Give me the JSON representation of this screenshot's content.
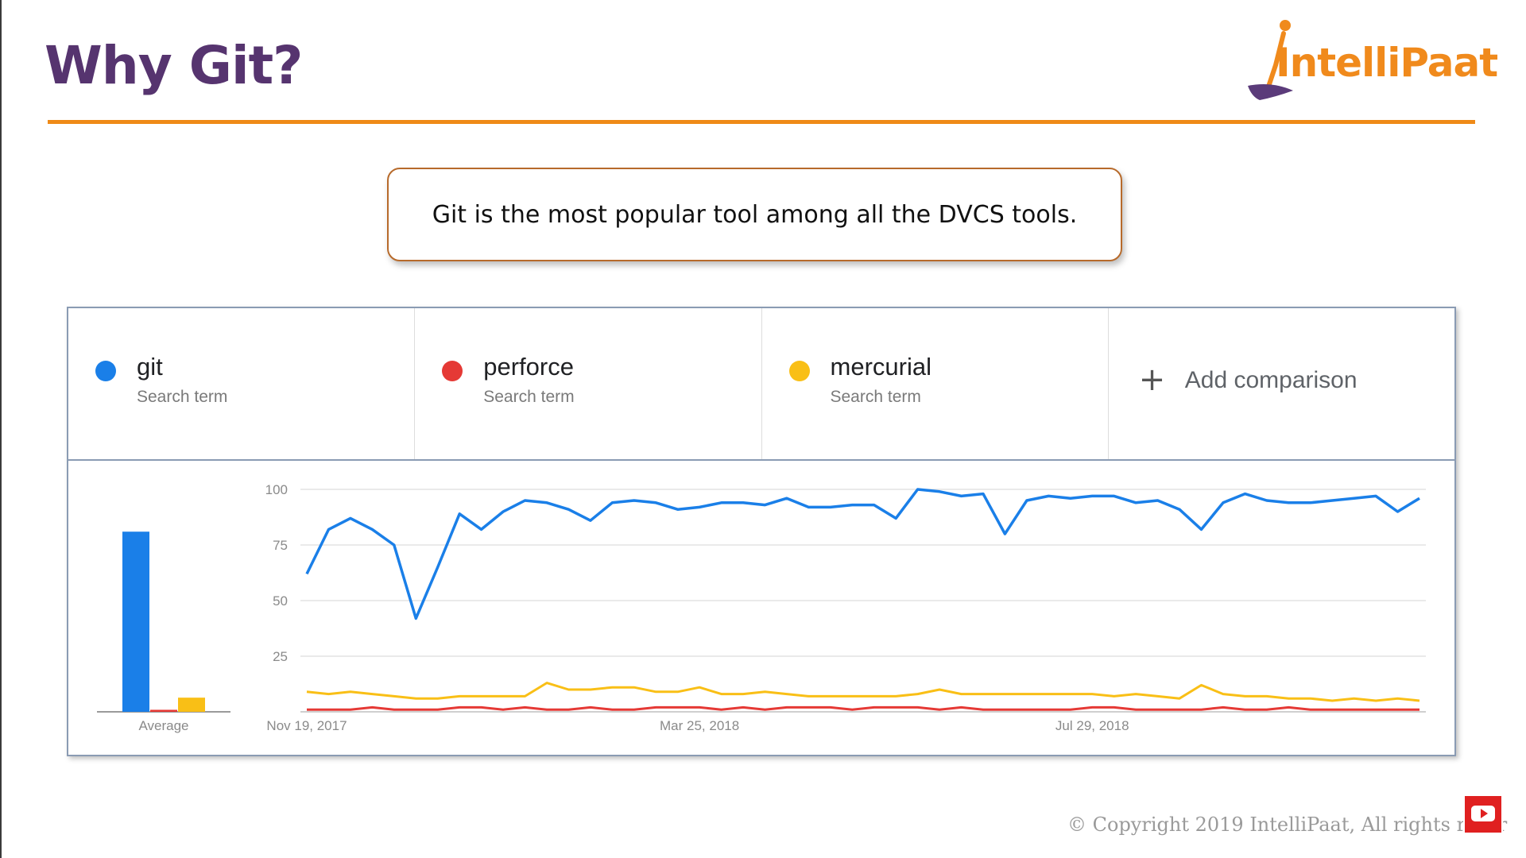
{
  "slide": {
    "title": "Why Git?",
    "logo_text": "IntelliPaat",
    "callout": "Git is the most popular tool among all the DVCS tools.",
    "copyright": "© Copyright 2019 IntelliPaat, All rights reser"
  },
  "colors": {
    "title": "#56346f",
    "accent": "#ef8a17",
    "git": "#1a7fe8",
    "perforce": "#e53935",
    "mercurial": "#f9bf16"
  },
  "terms": [
    {
      "name": "git",
      "sub": "Search term",
      "color": "#1a7fe8"
    },
    {
      "name": "perforce",
      "sub": "Search term",
      "color": "#e53935"
    },
    {
      "name": "mercurial",
      "sub": "Search term",
      "color": "#f9bf16"
    }
  ],
  "add_comparison": {
    "icon": "plus-icon",
    "label": "Add comparison"
  },
  "chart_data": {
    "type": "line",
    "title": "",
    "xlabel": "",
    "ylabel": "",
    "ylim": [
      0,
      100
    ],
    "yticks": [
      25,
      50,
      75,
      100
    ],
    "x_tick_labels": [
      {
        "label": "Nov 19, 2017",
        "index": 0
      },
      {
        "label": "Mar 25, 2018",
        "index": 18
      },
      {
        "label": "Jul 29, 2018",
        "index": 36
      }
    ],
    "grid": true,
    "series": [
      {
        "name": "git",
        "color": "#1a7fe8",
        "values": [
          62,
          82,
          87,
          82,
          75,
          42,
          65,
          89,
          82,
          90,
          95,
          94,
          91,
          86,
          94,
          95,
          94,
          91,
          92,
          94,
          94,
          93,
          96,
          92,
          92,
          93,
          93,
          87,
          100,
          99,
          97,
          98,
          80,
          95,
          97,
          96,
          97,
          97,
          94,
          95,
          91,
          82,
          94,
          98,
          95,
          94,
          94,
          95,
          96,
          97,
          90,
          96
        ]
      },
      {
        "name": "perforce",
        "color": "#e53935",
        "values": [
          1,
          1,
          1,
          2,
          1,
          1,
          1,
          2,
          2,
          1,
          2,
          1,
          1,
          2,
          1,
          1,
          2,
          2,
          2,
          1,
          2,
          1,
          2,
          2,
          2,
          1,
          2,
          2,
          2,
          1,
          2,
          1,
          1,
          1,
          1,
          1,
          2,
          2,
          1,
          1,
          1,
          1,
          2,
          1,
          1,
          2,
          1,
          1,
          1,
          1,
          1,
          1
        ]
      },
      {
        "name": "mercurial",
        "color": "#f9bf16",
        "values": [
          9,
          8,
          9,
          8,
          7,
          6,
          6,
          7,
          7,
          7,
          7,
          13,
          10,
          10,
          11,
          11,
          9,
          9,
          11,
          8,
          8,
          9,
          8,
          7,
          7,
          7,
          7,
          7,
          8,
          10,
          8,
          8,
          8,
          8,
          8,
          8,
          8,
          7,
          8,
          7,
          6,
          12,
          8,
          7,
          7,
          6,
          6,
          5,
          6,
          5,
          6,
          5
        ]
      }
    ],
    "average": {
      "label": "Average",
      "bars": [
        {
          "name": "git",
          "value": 89,
          "color": "#1a7fe8"
        },
        {
          "name": "perforce",
          "value": 1,
          "color": "#e53935"
        },
        {
          "name": "mercurial",
          "value": 7,
          "color": "#f9bf16"
        }
      ]
    }
  }
}
